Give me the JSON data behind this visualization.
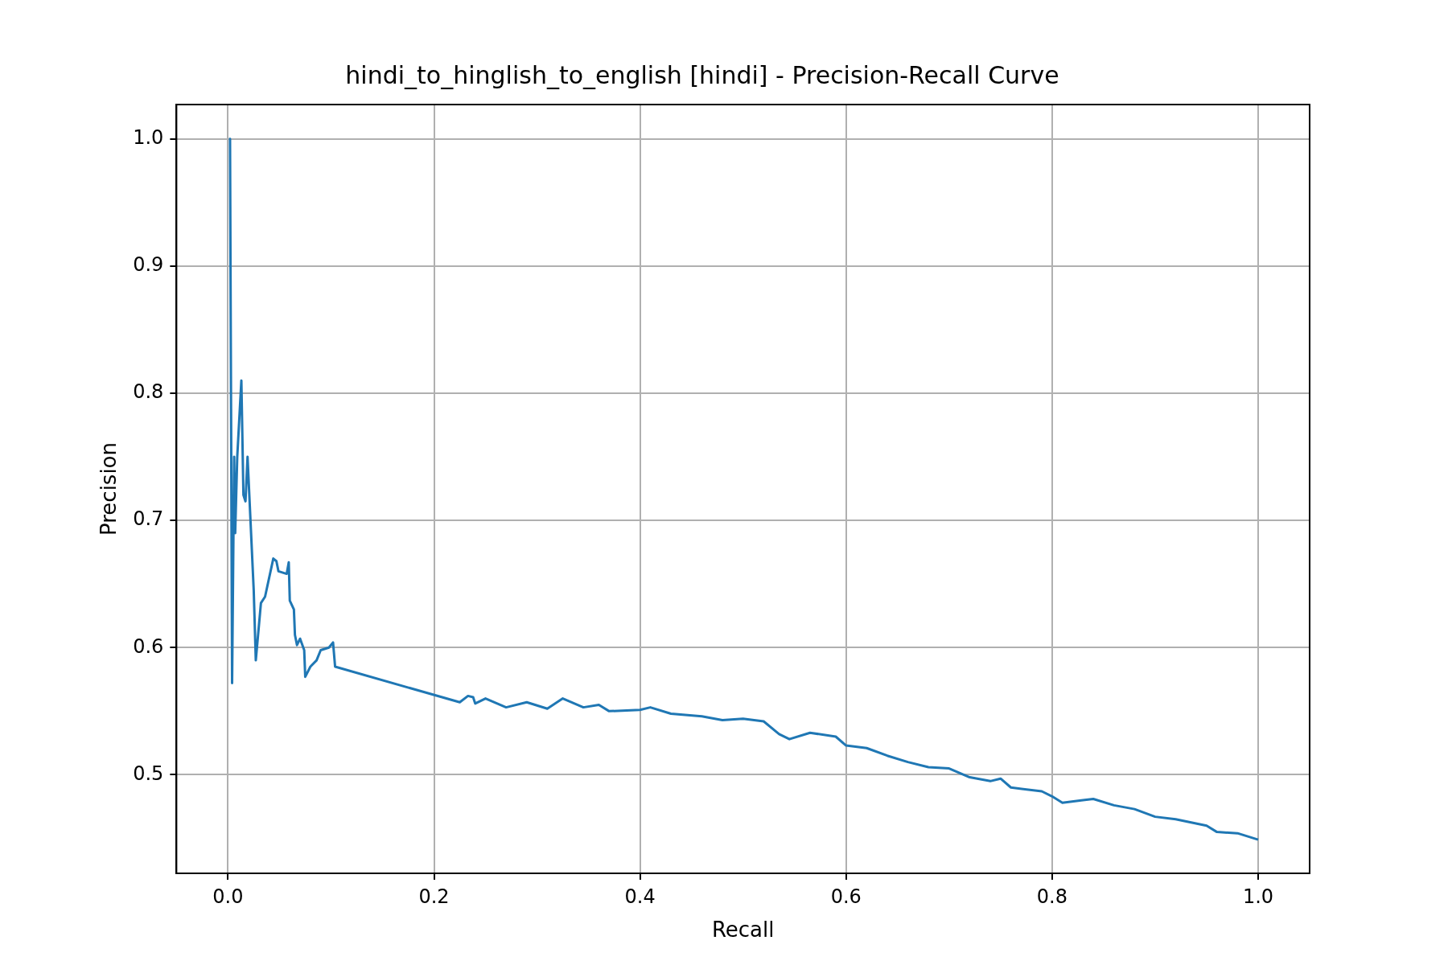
{
  "chart_data": {
    "type": "line",
    "title": "hindi_to_hinglish_to_english [hindi] - Precision-Recall Curve",
    "xlabel": "Recall",
    "ylabel": "Precision",
    "grid": true,
    "xlim": [
      -0.05,
      1.05
    ],
    "xticks": [
      {
        "value": 0,
        "label": "0.0"
      },
      0.2,
      0.4,
      0.6,
      0.8,
      {
        "value": 1,
        "label": "1.0"
      }
    ],
    "ylim": [
      0.4225,
      1.027
    ],
    "yticks": [
      {
        "value": 0.5,
        "label": "0.5"
      },
      0.6,
      0.7,
      0.8,
      0.9,
      {
        "value": 1,
        "label": "1.0"
      }
    ],
    "series": [
      {
        "color": "#1f77b4",
        "x": [
          0.001,
          0.002,
          0.004,
          0.006,
          0.007,
          0.009,
          0.013,
          0.015,
          0.017,
          0.019,
          0.025,
          0.027,
          0.032,
          0.036,
          0.044,
          0.047,
          0.049,
          0.057,
          0.059,
          0.06,
          0.064,
          0.065,
          0.067,
          0.07,
          0.074,
          0.075,
          0.08,
          0.086,
          0.09,
          0.098,
          0.102,
          0.104,
          0.225,
          0.233,
          0.238,
          0.24,
          0.25,
          0.27,
          0.29,
          0.31,
          0.325,
          0.345,
          0.36,
          0.37,
          0.4,
          0.41,
          0.43,
          0.46,
          0.48,
          0.5,
          0.52,
          0.535,
          0.545,
          0.565,
          0.59,
          0.6,
          0.62,
          0.64,
          0.66,
          0.68,
          0.7,
          0.72,
          0.74,
          0.75,
          0.76,
          0.79,
          0.8,
          0.81,
          0.83,
          0.84,
          0.86,
          0.88,
          0.9,
          0.92,
          0.95,
          0.96,
          0.98,
          1.0
        ],
        "values": [
          1.0,
          1.0,
          0.572,
          0.75,
          0.69,
          0.75,
          0.81,
          0.72,
          0.715,
          0.75,
          0.645,
          0.59,
          0.635,
          0.64,
          0.67,
          0.668,
          0.66,
          0.658,
          0.667,
          0.637,
          0.63,
          0.61,
          0.602,
          0.607,
          0.598,
          0.577,
          0.585,
          0.59,
          0.598,
          0.6,
          0.604,
          0.585,
          0.557,
          0.562,
          0.561,
          0.556,
          0.56,
          0.553,
          0.557,
          0.552,
          0.56,
          0.553,
          0.555,
          0.55,
          0.551,
          0.553,
          0.548,
          0.546,
          0.543,
          0.544,
          0.542,
          0.532,
          0.528,
          0.533,
          0.53,
          0.523,
          0.521,
          0.515,
          0.51,
          0.506,
          0.505,
          0.498,
          0.495,
          0.497,
          0.49,
          0.487,
          0.483,
          0.478,
          0.48,
          0.481,
          0.476,
          0.473,
          0.467,
          0.465,
          0.46,
          0.455,
          0.454,
          0.449
        ]
      }
    ]
  }
}
